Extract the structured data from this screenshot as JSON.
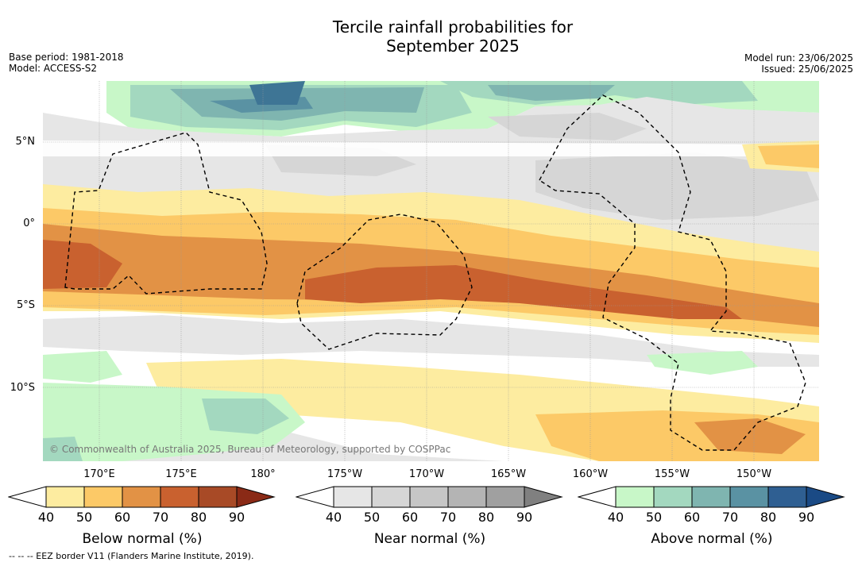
{
  "title_line1": "Tercile rainfall probabilities for",
  "title_line2": "September 2025",
  "base_period": "Base period: 1981-2018",
  "model": "Model: ACCESS-S2",
  "model_run": "Model run: 23/06/2025",
  "issued": "Issued: 25/06/2025",
  "copyright": "© Commonwealth of Australia 2025, Bureau of Meteorology, supported by COSPPac",
  "footer_note": "-- -- -- EEZ border V11 (Flanders Marine Institute, 2019).",
  "lat_labels": [
    "5°N",
    "0°",
    "5°S",
    "10°S"
  ],
  "lon_labels": [
    "170°E",
    "175°E",
    "180°",
    "175°W",
    "170°W",
    "165°W",
    "160°W",
    "155°W",
    "150°W"
  ],
  "colorbars": [
    {
      "label": "Below normal (%)",
      "ticks": [
        "40",
        "50",
        "60",
        "70",
        "80",
        "90"
      ],
      "colors": [
        "#ffffff",
        "#fdeca0",
        "#fcc967",
        "#e29245",
        "#c9612f",
        "#a84a26",
        "#8a2a16"
      ]
    },
    {
      "label": "Near normal (%)",
      "ticks": [
        "40",
        "50",
        "60",
        "70",
        "80",
        "90"
      ],
      "colors": [
        "#ffffff",
        "#e6e6e6",
        "#d6d6d6",
        "#c6c6c6",
        "#b4b4b4",
        "#a0a0a0",
        "#808080"
      ]
    },
    {
      "label": "Above normal (%)",
      "ticks": [
        "40",
        "50",
        "60",
        "70",
        "80",
        "90"
      ],
      "colors": [
        "#ffffff",
        "#c8f7c8",
        "#a3d8bf",
        "#7fb5b0",
        "#5a92a3",
        "#2f5f92",
        "#1a4a85"
      ]
    }
  ],
  "legend_categories": {
    "below": "Below normal",
    "near": "Near normal",
    "above": "Above normal"
  }
}
